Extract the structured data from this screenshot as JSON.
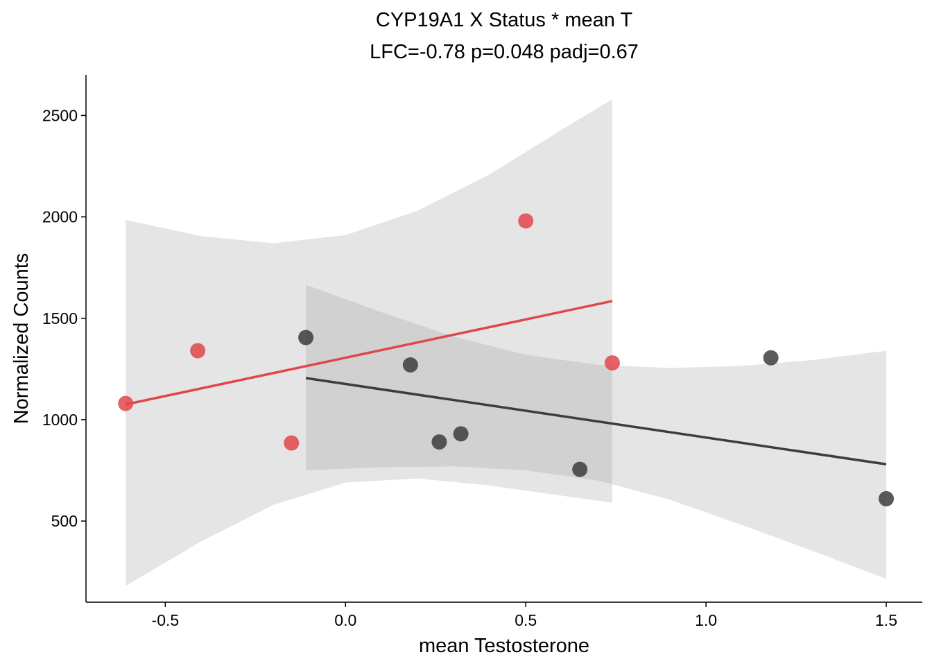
{
  "chart_data": {
    "type": "scatter",
    "title": "CYP19A1 X Status * mean T",
    "subtitle": "LFC=-0.78 p=0.048 padj=0.67",
    "xlabel": "mean Testosterone",
    "ylabel": "Normalized Counts",
    "xlim": [
      -0.72,
      1.6
    ],
    "ylim": [
      100,
      2700
    ],
    "x_ticks": [
      -0.5,
      0.0,
      0.5,
      1.0,
      1.5
    ],
    "x_tick_labels": [
      "-0.5",
      "0.0",
      "0.5",
      "1.0",
      "1.5"
    ],
    "y_ticks": [
      500,
      1000,
      1500,
      2000,
      2500
    ],
    "y_tick_labels": [
      "500",
      "1000",
      "1500",
      "2000",
      "2500"
    ],
    "grid": false,
    "legend": "none",
    "series": [
      {
        "color": "#e0474c",
        "points": [
          {
            "x": -0.61,
            "y": 1080
          },
          {
            "x": -0.41,
            "y": 1340
          },
          {
            "x": -0.15,
            "y": 885
          },
          {
            "x": 0.5,
            "y": 1980
          },
          {
            "x": 0.74,
            "y": 1280
          }
        ],
        "fit": {
          "x": [
            -0.61,
            0.74
          ],
          "y": [
            1075,
            1585
          ]
        },
        "ci_upper": [
          {
            "x": -0.61,
            "y": 1985
          },
          {
            "x": -0.4,
            "y": 1905
          },
          {
            "x": -0.2,
            "y": 1870
          },
          {
            "x": 0.0,
            "y": 1910
          },
          {
            "x": 0.2,
            "y": 2030
          },
          {
            "x": 0.4,
            "y": 2210
          },
          {
            "x": 0.6,
            "y": 2430
          },
          {
            "x": 0.74,
            "y": 2580
          }
        ],
        "ci_lower": [
          {
            "x": -0.61,
            "y": 180
          },
          {
            "x": -0.4,
            "y": 400
          },
          {
            "x": -0.2,
            "y": 580
          },
          {
            "x": 0.0,
            "y": 690
          },
          {
            "x": 0.2,
            "y": 710
          },
          {
            "x": 0.4,
            "y": 675
          },
          {
            "x": 0.6,
            "y": 625
          },
          {
            "x": 0.74,
            "y": 590
          }
        ]
      },
      {
        "color": "#3d3d3d",
        "points": [
          {
            "x": -0.11,
            "y": 1405
          },
          {
            "x": 0.18,
            "y": 1270
          },
          {
            "x": 0.26,
            "y": 890
          },
          {
            "x": 0.32,
            "y": 930
          },
          {
            "x": 0.65,
            "y": 755
          },
          {
            "x": 1.18,
            "y": 1305
          },
          {
            "x": 1.5,
            "y": 610
          }
        ],
        "fit": {
          "x": [
            -0.11,
            1.5
          ],
          "y": [
            1205,
            780
          ]
        },
        "ci_upper": [
          {
            "x": -0.11,
            "y": 1665
          },
          {
            "x": 0.1,
            "y": 1530
          },
          {
            "x": 0.3,
            "y": 1410
          },
          {
            "x": 0.5,
            "y": 1320
          },
          {
            "x": 0.7,
            "y": 1270
          },
          {
            "x": 0.9,
            "y": 1255
          },
          {
            "x": 1.1,
            "y": 1265
          },
          {
            "x": 1.3,
            "y": 1295
          },
          {
            "x": 1.5,
            "y": 1340
          }
        ],
        "ci_lower": [
          {
            "x": -0.11,
            "y": 750
          },
          {
            "x": 0.1,
            "y": 765
          },
          {
            "x": 0.3,
            "y": 770
          },
          {
            "x": 0.5,
            "y": 750
          },
          {
            "x": 0.7,
            "y": 700
          },
          {
            "x": 0.9,
            "y": 605
          },
          {
            "x": 1.1,
            "y": 480
          },
          {
            "x": 1.3,
            "y": 350
          },
          {
            "x": 1.5,
            "y": 215
          }
        ]
      }
    ]
  }
}
